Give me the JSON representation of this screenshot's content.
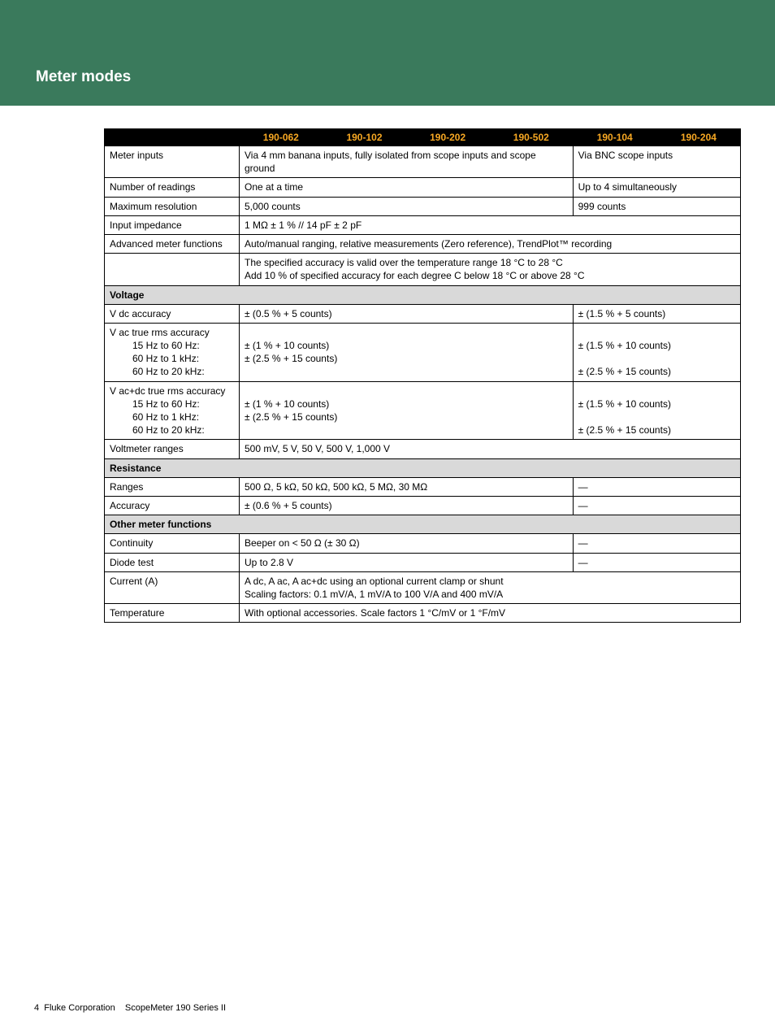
{
  "header": {
    "title": "Meter modes"
  },
  "th_blank": "",
  "models": {
    "m1": "190-062",
    "m2": "190-102",
    "m3": "190-202",
    "m4": "190-502",
    "m5": "190-104",
    "m6": "190-204"
  },
  "rows": {
    "meter_inputs": {
      "label": "Meter inputs",
      "a": "Via 4 mm banana inputs, fully isolated from scope inputs and scope ground",
      "b": "Via BNC scope inputs"
    },
    "num_readings": {
      "label": "Number of readings",
      "a": "One at a time",
      "b": "Up to 4 simultaneously"
    },
    "max_res": {
      "label": "Maximum resolution",
      "a": "5,000 counts",
      "b": "999 counts"
    },
    "input_imp": {
      "label": "Input impedance",
      "a": "1 MΩ ± 1 % // 14 pF ± 2 pF"
    },
    "adv_meter": {
      "label": "Advanced meter functions",
      "a": "Auto/manual ranging, relative measurements (Zero reference), TrendPlot™ recording"
    },
    "accuracy_note": {
      "label": "",
      "a": "The specified accuracy is valid over the temperature range 18 °C to 28 °C\nAdd 10 % of specified accuracy for each degree C below 18 °C or above 28 °C"
    },
    "voltage_section": "Voltage",
    "vdc": {
      "label": "V dc accuracy",
      "a": "± (0.5 % + 5 counts)",
      "b": "± (1.5 % + 5 counts)"
    },
    "vac": {
      "label_main": "V ac true rms accuracy",
      "sub1": "15 Hz to 60 Hz:",
      "sub2": "60 Hz to 1 kHz:",
      "sub3": "60 Hz to 20 kHz:",
      "a1": "± (1 % + 10 counts)",
      "a2": "± (2.5 % + 15 counts)",
      "b1": "± (1.5 % + 10 counts)",
      "b3": "± (2.5 % + 15 counts)"
    },
    "vacdc": {
      "label_main": "V ac+dc true rms accuracy",
      "sub1": "15 Hz to 60 Hz:",
      "sub2": "60 Hz to 1 kHz:",
      "sub3": "60 Hz to 20 kHz:",
      "a1": "± (1 % + 10 counts)",
      "a2": "± (2.5 % + 15 counts)",
      "b1": "± (1.5 % + 10 counts)",
      "b3": "± (2.5 % + 15 counts)"
    },
    "voltmeter_ranges": {
      "label": "Voltmeter ranges",
      "a": "500 mV, 5 V, 50 V, 500 V, 1,000 V"
    },
    "resistance_section": "Resistance",
    "ranges": {
      "label": "Ranges",
      "a": "500 Ω, 5 kΩ, 50 kΩ, 500 kΩ, 5 MΩ, 30 MΩ",
      "b": "—"
    },
    "accuracy": {
      "label": "Accuracy",
      "a": "± (0.6 % + 5 counts)",
      "b": "—"
    },
    "other_section": "Other meter functions",
    "continuity": {
      "label": "Continuity",
      "a": "Beeper on < 50 Ω (± 30 Ω)",
      "b": "—"
    },
    "diode": {
      "label": "Diode test",
      "a": "Up to 2.8 V",
      "b": "—"
    },
    "current": {
      "label": "Current (A)",
      "a": "A dc, A ac, A ac+dc using an optional current clamp or shunt\nScaling factors: 0.1 mV/A, 1 mV/A to 100 V/A and 400 mV/A"
    },
    "temperature": {
      "label": "Temperature",
      "a": "With optional accessories. Scale factors 1 °C/mV or 1 °F/mV"
    }
  },
  "footer": {
    "page": "4",
    "company": "Fluke Corporation",
    "product": "ScopeMeter 190 Series II"
  }
}
